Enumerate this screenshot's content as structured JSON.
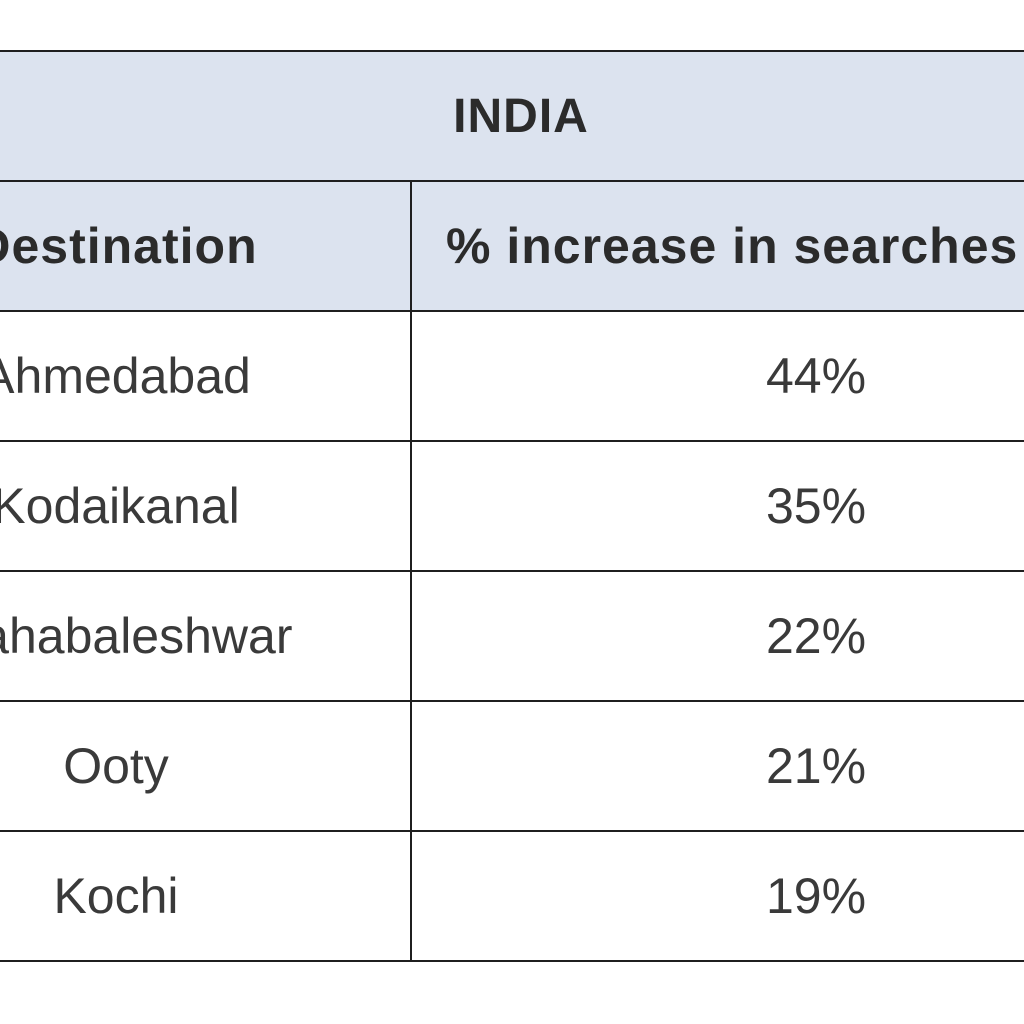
{
  "table": {
    "title": "INDIA",
    "headers": {
      "destination": "Destination",
      "increase": "% increase in searches"
    },
    "rows": [
      {
        "destination": "Ahmedabad",
        "increase": "44%"
      },
      {
        "destination": "Kodaikanal",
        "increase": "35%"
      },
      {
        "destination": "Mahabaleshwar",
        "increase": "22%"
      },
      {
        "destination": "Ooty",
        "increase": "21%"
      },
      {
        "destination": "Kochi",
        "increase": "19%"
      }
    ]
  }
}
